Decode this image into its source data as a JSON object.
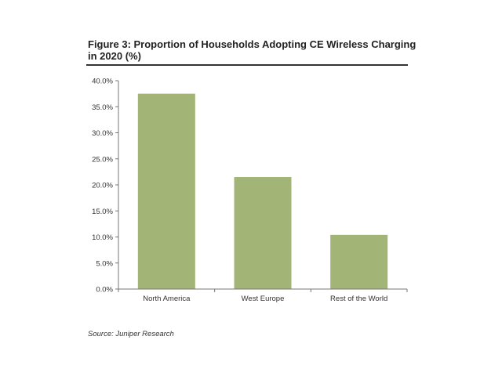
{
  "title": "Figure 3: Proportion of Households Adopting CE Wireless Charging in 2020 (%)",
  "source": "Source: Juniper Research",
  "colors": {
    "bar": "#a3b576",
    "axis": "#777777",
    "rule": "#333333"
  },
  "chart_data": {
    "type": "bar",
    "title": "Figure 3: Proportion of Households Adopting CE Wireless Charging in 2020 (%)",
    "categories": [
      "North America",
      "West Europe",
      "Rest of the World"
    ],
    "values": [
      37.5,
      21.5,
      10.4
    ],
    "ylim": [
      0,
      40
    ],
    "yticks": [
      0,
      5,
      10,
      15,
      20,
      25,
      30,
      35,
      40
    ],
    "ytick_labels": [
      "0.0%",
      "5.0%",
      "10.0%",
      "15.0%",
      "20.0%",
      "25.0%",
      "30.0%",
      "35.0%",
      "40.0%"
    ],
    "xlabel": "",
    "ylabel": "",
    "grid": false,
    "legend": "none"
  }
}
